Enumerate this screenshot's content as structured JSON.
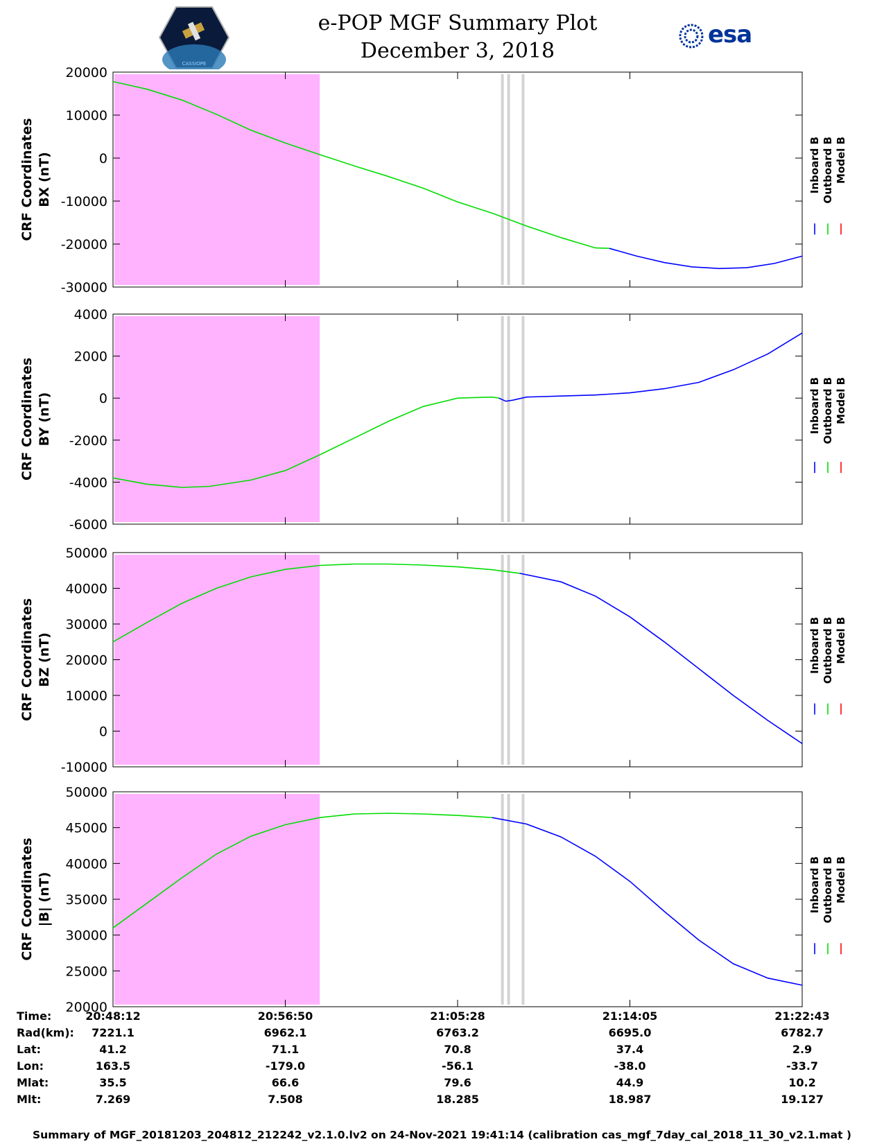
{
  "header": {
    "title": "e-POP MGF Summary Plot",
    "subtitle": "December 3, 2018",
    "logo_left": "CASSIOPE",
    "logo_right": "esa"
  },
  "colors": {
    "inboard": "#0000ff",
    "outboard": "#00dd00",
    "model": "#ff0000",
    "shade": "#ffb3ff",
    "gap": "#d3d3d3"
  },
  "chart_data": [
    {
      "type": "line",
      "ylabel_line1": "CRF Coordinates",
      "ylabel_line2": "BX (nT)",
      "ylim": [
        -30000,
        20000
      ],
      "yticks": [
        "20000",
        "10000",
        "0",
        "-10000",
        "-20000",
        "-30000"
      ],
      "ytick_values": [
        20000,
        10000,
        0,
        -10000,
        -20000,
        -30000
      ],
      "legend": [
        "Inboard B",
        "Outboard B",
        "Model B"
      ],
      "series": [
        {
          "name": "Outboard B",
          "x": [
            0,
            0.05,
            0.1,
            0.15,
            0.2,
            0.25,
            0.3,
            0.35,
            0.4,
            0.45,
            0.5,
            0.55,
            0.6,
            0.65,
            0.7,
            0.72
          ],
          "values": [
            17800,
            16000,
            13500,
            10200,
            6500,
            3500,
            800,
            -1800,
            -4300,
            -7000,
            -10200,
            -12800,
            -15800,
            -18500,
            -20900,
            -21000
          ]
        },
        {
          "name": "Inboard B",
          "x": [
            0.72,
            0.76,
            0.8,
            0.84,
            0.88,
            0.92,
            0.96,
            1.0
          ],
          "values": [
            -21000,
            -22800,
            -24300,
            -25300,
            -25700,
            -25500,
            -24500,
            -22800
          ]
        }
      ]
    },
    {
      "type": "line",
      "ylabel_line1": "CRF Coordinates",
      "ylabel_line2": "BY (nT)",
      "ylim": [
        -6000,
        4000
      ],
      "yticks": [
        "4000",
        "2000",
        "0",
        "-2000",
        "-4000",
        "-6000"
      ],
      "ytick_values": [
        4000,
        2000,
        0,
        -2000,
        -4000,
        -6000
      ],
      "legend": [
        "Inboard B",
        "Outboard B",
        "Model B"
      ],
      "series": [
        {
          "name": "Outboard B",
          "x": [
            0,
            0.05,
            0.1,
            0.14,
            0.2,
            0.25,
            0.3,
            0.35,
            0.4,
            0.45,
            0.5,
            0.55,
            0.56
          ],
          "values": [
            -3800,
            -4100,
            -4250,
            -4200,
            -3900,
            -3450,
            -2700,
            -1900,
            -1100,
            -400,
            0,
            50,
            0
          ]
        },
        {
          "name": "Inboard B",
          "x": [
            0.56,
            0.57,
            0.58,
            0.6,
            0.65,
            0.7,
            0.75,
            0.8,
            0.85,
            0.9,
            0.95,
            1.0
          ],
          "values": [
            0,
            -150,
            -100,
            50,
            100,
            150,
            250,
            450,
            750,
            1350,
            2100,
            3100
          ]
        }
      ]
    },
    {
      "type": "line",
      "ylabel_line1": "CRF Coordinates",
      "ylabel_line2": "BZ (nT)",
      "ylim": [
        -10000,
        50000
      ],
      "yticks": [
        "50000",
        "40000",
        "30000",
        "20000",
        "10000",
        "0",
        "-10000"
      ],
      "ytick_values": [
        50000,
        40000,
        30000,
        20000,
        10000,
        0,
        -10000
      ],
      "legend": [
        "Inboard B",
        "Outboard B",
        "Model B"
      ],
      "series": [
        {
          "name": "Outboard B",
          "x": [
            0,
            0.05,
            0.1,
            0.15,
            0.2,
            0.25,
            0.3,
            0.35,
            0.4,
            0.45,
            0.5,
            0.55,
            0.59
          ],
          "values": [
            25000,
            30500,
            35800,
            40000,
            43200,
            45300,
            46400,
            46800,
            46800,
            46500,
            46000,
            45200,
            44200
          ]
        },
        {
          "name": "Inboard B",
          "x": [
            0.59,
            0.65,
            0.7,
            0.75,
            0.8,
            0.85,
            0.9,
            0.95,
            1.0
          ],
          "values": [
            44200,
            41800,
            37800,
            32000,
            25000,
            17500,
            10000,
            3000,
            -3500
          ]
        }
      ]
    },
    {
      "type": "line",
      "ylabel_line1": "CRF Coordinates",
      "ylabel_line2": "|B| (nT)",
      "ylim": [
        20000,
        50000
      ],
      "yticks": [
        "50000",
        "45000",
        "40000",
        "35000",
        "30000",
        "25000",
        "20000"
      ],
      "ytick_values": [
        50000,
        45000,
        40000,
        35000,
        30000,
        25000,
        20000
      ],
      "legend": [
        "Inboard B",
        "Outboard B",
        "Model B"
      ],
      "series": [
        {
          "name": "Outboard B",
          "x": [
            0,
            0.05,
            0.1,
            0.15,
            0.2,
            0.25,
            0.3,
            0.35,
            0.4,
            0.45,
            0.5,
            0.55
          ],
          "values": [
            31000,
            34500,
            38000,
            41300,
            43800,
            45400,
            46400,
            46900,
            47000,
            46900,
            46700,
            46400
          ]
        },
        {
          "name": "Inboard B",
          "x": [
            0.55,
            0.6,
            0.65,
            0.7,
            0.75,
            0.8,
            0.85,
            0.9,
            0.95,
            1.0
          ],
          "values": [
            46400,
            45500,
            43700,
            41000,
            37500,
            33300,
            29300,
            26000,
            24000,
            23000
          ]
        }
      ]
    }
  ],
  "time_axis": {
    "shaded_range": [
      0,
      0.3
    ],
    "gap_positions": [
      0.565,
      0.574,
      0.595
    ],
    "xtick_positions": [
      0,
      0.25,
      0.5,
      0.75,
      1.0
    ]
  },
  "footer": {
    "labels": [
      "Time:",
      "Rad(km):",
      "Lat:",
      "Lon:",
      "Mlat:",
      "Mlt:"
    ],
    "columns": [
      [
        "20:48:12",
        "7221.1",
        "41.2",
        "163.5",
        "35.5",
        "7.269"
      ],
      [
        "20:56:50",
        "6962.1",
        "71.1",
        "-179.0",
        "66.6",
        "7.508"
      ],
      [
        "21:05:28",
        "6763.2",
        "70.8",
        "-56.1",
        "79.6",
        "18.285"
      ],
      [
        "21:14:05",
        "6695.0",
        "37.4",
        "-38.0",
        "44.9",
        "18.987"
      ],
      [
        "21:22:43",
        "6782.7",
        "2.9",
        "-33.7",
        "10.2",
        "19.127"
      ]
    ],
    "caption": "Summary of MGF_20181203_204812_212242_v2.1.0.lv2 on 24-Nov-2021 19:41:14 (calibration cas_mgf_7day_cal_2018_11_30_v2.1.mat )"
  }
}
